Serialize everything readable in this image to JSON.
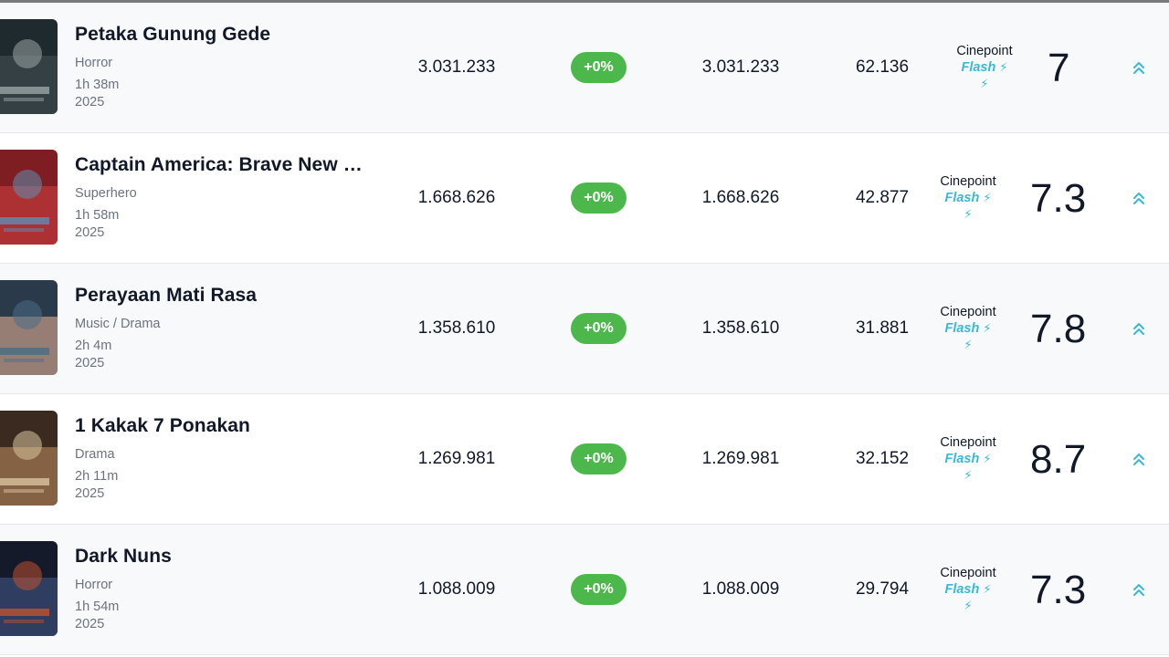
{
  "rows": [
    {
      "title": "Petaka Gunung Gede",
      "genre": "Horror",
      "duration": "1h 38m",
      "year": "2025",
      "total": "3.031.233",
      "change": "+0%",
      "week": "3.031.233",
      "screens": "62.136",
      "cp_label": "Cinepoint",
      "cp_flash": "Flash",
      "score": "7",
      "poster_colors": [
        "#1f2a2e",
        "#3d4a4f",
        "#9aa4a6"
      ]
    },
    {
      "title": "Captain America: Brave New World",
      "genre": "Superhero",
      "duration": "1h 58m",
      "year": "2025",
      "total": "1.668.626",
      "change": "+0%",
      "week": "1.668.626",
      "screens": "42.877",
      "cp_label": "Cinepoint",
      "cp_flash": "Flash",
      "score": "7.3",
      "poster_colors": [
        "#7e1d22",
        "#c23b3b",
        "#5d8fb5"
      ]
    },
    {
      "title": "Perayaan Mati Rasa",
      "genre": "Music / Drama",
      "duration": "2h 4m",
      "year": "2025",
      "total": "1.358.610",
      "change": "+0%",
      "week": "1.358.610",
      "screens": "31.881",
      "cp_label": "Cinepoint",
      "cp_flash": "Flash",
      "score": "7.8",
      "poster_colors": [
        "#2b3a4a",
        "#c59b88",
        "#4b6b86"
      ]
    },
    {
      "title": "1 Kakak 7 Ponakan",
      "genre": "Drama",
      "duration": "2h 11m",
      "year": "2025",
      "total": "1.269.981",
      "change": "+0%",
      "week": "1.269.981",
      "screens": "32.152",
      "cp_label": "Cinepoint",
      "cp_flash": "Flash",
      "score": "8.7",
      "poster_colors": [
        "#3a2a1f",
        "#a57a52",
        "#d8c4a0"
      ]
    },
    {
      "title": "Dark Nuns",
      "genre": "Horror",
      "duration": "1h 54m",
      "year": "2025",
      "total": "1.088.009",
      "change": "+0%",
      "week": "1.088.009",
      "screens": "29.794",
      "cp_label": "Cinepoint",
      "cp_flash": "Flash",
      "score": "7.3",
      "poster_colors": [
        "#141a2a",
        "#3b4e78",
        "#c0502e"
      ]
    }
  ],
  "icons": {
    "flash": "lightning-bolt-icon",
    "expand": "double-chevron-up-icon"
  },
  "accent_color": "#3ab8d6",
  "badge_color": "#4cb84c"
}
